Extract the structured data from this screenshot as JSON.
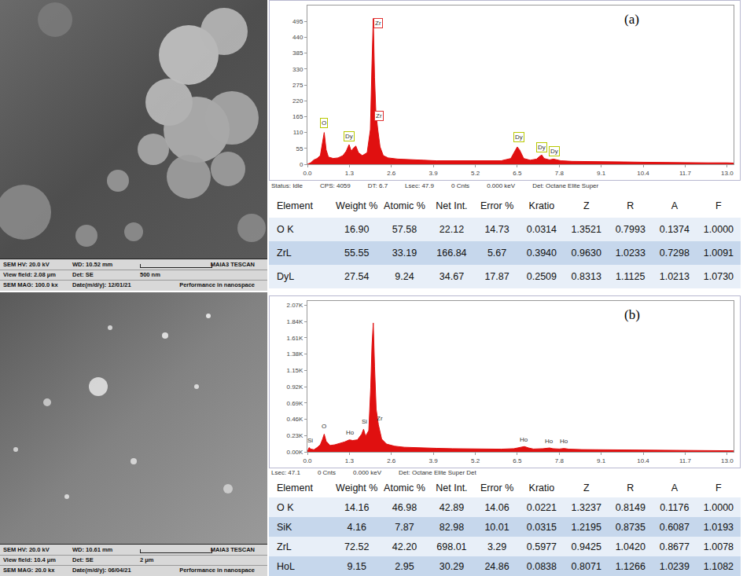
{
  "chart_data": [
    {
      "type": "area",
      "color": "#e01010",
      "grid": false,
      "annotations": [
        {
          "text": "(a)"
        }
      ],
      "xlim": [
        0,
        13.2
      ],
      "xticks": [
        {
          "value": 0,
          "label": "0.0"
        },
        1.3,
        2.6,
        3.9,
        5.2,
        6.5,
        7.8,
        9.1,
        10.4,
        11.7,
        {
          "value": 13,
          "label": "13.0"
        }
      ],
      "ylim": [
        0,
        550
      ],
      "yticks": [
        0,
        55,
        110,
        165,
        220,
        275,
        330,
        385,
        440,
        495
      ],
      "x": [
        0,
        0.1,
        0.2,
        0.3,
        0.4,
        0.45,
        0.52,
        0.58,
        0.65,
        0.8,
        0.95,
        1.1,
        1.2,
        1.29,
        1.36,
        1.42,
        1.5,
        1.58,
        1.7,
        1.85,
        1.95,
        2.0,
        2.04,
        2.08,
        2.12,
        2.18,
        2.25,
        2.35,
        2.5,
        2.8,
        3.2,
        3.6,
        4.0,
        4.5,
        5.0,
        5.5,
        6.0,
        6.3,
        6.45,
        6.5,
        6.57,
        6.7,
        6.9,
        7.1,
        7.2,
        7.26,
        7.33,
        7.5,
        7.62,
        7.7,
        7.85,
        8.2,
        8.6,
        9.1,
        9.8,
        10.4,
        11.0,
        11.7,
        12.4,
        13.0,
        13.2
      ],
      "values": [
        0,
        5,
        15,
        20,
        30,
        60,
        110,
        50,
        25,
        20,
        22,
        30,
        45,
        68,
        45,
        55,
        63,
        40,
        30,
        40,
        120,
        350,
        505,
        300,
        180,
        120,
        60,
        30,
        22,
        18,
        15,
        14,
        12,
        12,
        11,
        10,
        12,
        20,
        50,
        60,
        50,
        20,
        14,
        18,
        28,
        32,
        20,
        15,
        18,
        16,
        12,
        10,
        9,
        9,
        8,
        7,
        6,
        6,
        5,
        5,
        4
      ],
      "peak_labels": [
        {
          "text": "O",
          "x": 0.52,
          "y": 125,
          "color": "#b8c800"
        },
        {
          "text": "Dy",
          "x": 1.3,
          "y": 80,
          "color": "#b8c800"
        },
        {
          "text": "Zr",
          "x": 2.2,
          "y": 470,
          "color": "#e03030"
        },
        {
          "text": "Zr",
          "x": 2.22,
          "y": 150,
          "color": "#e03030"
        },
        {
          "text": "Dy",
          "x": 6.55,
          "y": 75,
          "color": "#b8c800"
        },
        {
          "text": "Dy",
          "x": 7.25,
          "y": 42,
          "color": "#b8c800"
        },
        {
          "text": "Dy",
          "x": 7.65,
          "y": 28,
          "color": "#b8c800"
        }
      ]
    },
    {
      "type": "area",
      "color": "#e01010",
      "grid": false,
      "annotations": [
        {
          "text": "(b)"
        }
      ],
      "xlim": [
        0,
        13.2
      ],
      "xticks": [
        {
          "value": 0,
          "label": "0.0"
        },
        1.3,
        2.6,
        3.9,
        5.2,
        6.5,
        7.8,
        9.1,
        10.4,
        11.7,
        {
          "value": 13,
          "label": "13.0"
        }
      ],
      "ylim": [
        0,
        2130
      ],
      "yticks": [
        {
          "value": 0,
          "label": "0.00K"
        },
        {
          "value": 230,
          "label": "0.23K"
        },
        {
          "value": 460,
          "label": "0.46K"
        },
        {
          "value": 690,
          "label": "0.69K"
        },
        {
          "value": 920,
          "label": "0.92K"
        },
        {
          "value": 1150,
          "label": "1.15K"
        },
        {
          "value": 1380,
          "label": "1.38K"
        },
        {
          "value": 1610,
          "label": "1.61K"
        },
        {
          "value": 1840,
          "label": "1.84K"
        },
        {
          "value": 2070,
          "label": "2.07K"
        }
      ],
      "x": [
        0,
        0.05,
        0.1,
        0.2,
        0.3,
        0.4,
        0.47,
        0.52,
        0.58,
        0.7,
        0.85,
        1.0,
        1.15,
        1.3,
        1.4,
        1.55,
        1.68,
        1.74,
        1.8,
        1.9,
        1.96,
        2.0,
        2.04,
        2.08,
        2.13,
        2.2,
        2.3,
        2.45,
        2.7,
        3.0,
        3.5,
        4.0,
        4.5,
        5.0,
        5.5,
        6.0,
        6.4,
        6.6,
        6.72,
        6.85,
        7.0,
        7.3,
        7.5,
        7.6,
        7.8,
        7.95,
        8.1,
        8.5,
        9.1,
        9.8,
        10.4,
        11.0,
        11.7,
        12.4,
        13.0,
        13.2
      ],
      "values": [
        0,
        60,
        40,
        30,
        60,
        100,
        180,
        250,
        150,
        90,
        100,
        120,
        140,
        170,
        160,
        170,
        250,
        320,
        220,
        300,
        900,
        1500,
        1820,
        1200,
        600,
        380,
        180,
        110,
        80,
        65,
        55,
        50,
        45,
        42,
        40,
        38,
        45,
        65,
        75,
        55,
        40,
        45,
        55,
        45,
        40,
        48,
        38,
        32,
        30,
        28,
        25,
        22,
        20,
        18,
        16,
        15
      ],
      "peak_labels": [
        {
          "text": "Si",
          "x": 0.08,
          "y": 90
        },
        {
          "text": "O",
          "x": 0.52,
          "y": 290
        },
        {
          "text": "Ho",
          "x": 1.33,
          "y": 200
        },
        {
          "text": "Si",
          "x": 1.76,
          "y": 350
        },
        {
          "text": "Zr",
          "x": 2.25,
          "y": 400
        },
        {
          "text": "Ho",
          "x": 6.72,
          "y": 100
        },
        {
          "text": "Ho",
          "x": 7.5,
          "y": 80
        },
        {
          "text": "Ho",
          "x": 7.95,
          "y": 80
        }
      ]
    }
  ],
  "status_bars": [
    [
      "Status: Idle",
      "CPS: 4059",
      "DT: 6.7",
      "Lsec: 47.9",
      "0 Cnts",
      "0.000 keV",
      "Det: Octane Elite Super"
    ],
    [
      "Lsec: 47.1",
      "0 Cnts",
      "0.000 keV",
      "Det: Octane Elite Super Det"
    ]
  ],
  "tables": [
    {
      "header": [
        "Element",
        "Weight %",
        "Atomic %",
        "Net Int.",
        "Error %",
        "Kratio",
        "Z",
        "R",
        "A",
        "F"
      ],
      "rows": [
        [
          "O K",
          "16.90",
          "57.58",
          "22.12",
          "14.73",
          "0.0314",
          "1.3521",
          "0.7993",
          "0.1374",
          "1.0000"
        ],
        [
          "ZrL",
          "55.55",
          "33.19",
          "166.84",
          "5.67",
          "0.3940",
          "0.9630",
          "1.0233",
          "0.7298",
          "1.0091"
        ],
        [
          "DyL",
          "27.54",
          "9.24",
          "34.67",
          "17.87",
          "0.2509",
          "0.8313",
          "1.1125",
          "1.0213",
          "1.0730"
        ]
      ]
    },
    {
      "header": [
        "Element",
        "Weight %",
        "Atomic %",
        "Net Int.",
        "Error %",
        "Kratio",
        "Z",
        "R",
        "A",
        "F"
      ],
      "rows": [
        [
          "O K",
          "14.16",
          "46.98",
          "42.89",
          "14.06",
          "0.0221",
          "1.3237",
          "0.8149",
          "0.1176",
          "1.0000"
        ],
        [
          "SiK",
          "4.16",
          "7.87",
          "82.98",
          "10.01",
          "0.0315",
          "1.2195",
          "0.8735",
          "0.6087",
          "1.0193"
        ],
        [
          "ZrL",
          "72.52",
          "42.20",
          "698.01",
          "3.29",
          "0.5977",
          "0.9425",
          "1.0420",
          "0.8677",
          "1.0078"
        ],
        [
          "HoL",
          "9.15",
          "2.95",
          "30.29",
          "24.86",
          "0.0838",
          "0.8071",
          "1.1266",
          "1.0239",
          "1.1082"
        ]
      ]
    }
  ],
  "sem_images": [
    {
      "info_rows": [
        [
          "SEM HV: 20.0 kV",
          "WD: 10.52 mm",
          "MAIA3 TESCAN"
        ],
        [
          "View field: 2.08 μm",
          "Det: SE",
          "500 nm"
        ],
        [
          "SEM MAG: 100.0 kx",
          "Date(m/d/y): 12/01/21",
          "Performance in nanospace"
        ]
      ]
    },
    {
      "info_rows": [
        [
          "SEM HV: 20.0 kV",
          "WD: 10.61 mm",
          "MAIA3 TESCAN"
        ],
        [
          "View field: 10.4 μm",
          "Det: SE",
          "2 μm"
        ],
        [
          "SEM MAG: 20.0 kx",
          "Date(m/d/y): 06/04/21",
          "Performance in nanospace"
        ]
      ]
    }
  ]
}
